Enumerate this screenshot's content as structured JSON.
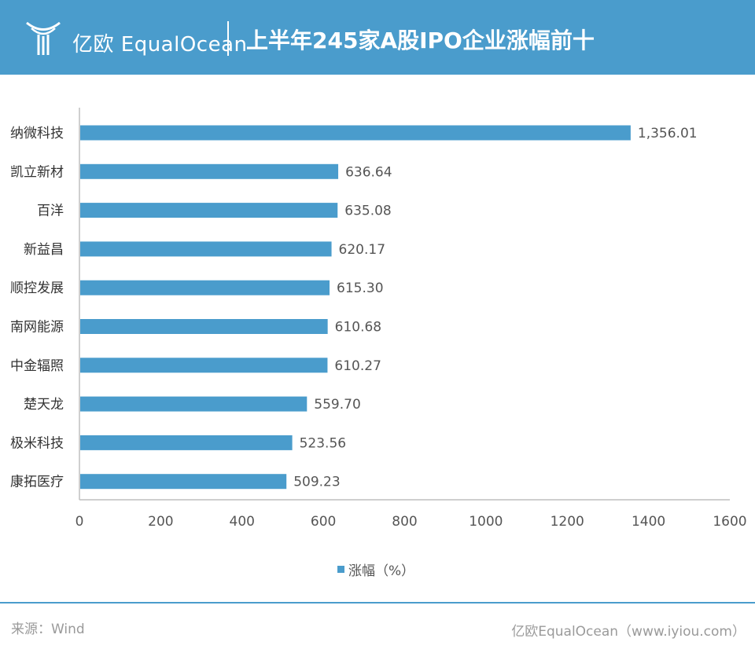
{
  "header": {
    "brand": "亿欧 EqualOcean",
    "title": "上半年245家A股IPO企业涨幅前十",
    "logo_icon": "equalocean-logo-icon",
    "background_color": "#4a9ccc"
  },
  "chart_data": {
    "type": "bar",
    "orientation": "horizontal",
    "title": "上半年245家A股IPO企业涨幅前十",
    "xlabel": "",
    "ylabel": "",
    "xlim": [
      0,
      1600
    ],
    "x_ticks": [
      "0",
      "200",
      "400",
      "600",
      "800",
      "1000",
      "1200",
      "1400",
      "1600"
    ],
    "grid": false,
    "legend_position": "bottom-center",
    "bar_color": "#4a9ccc",
    "categories": [
      "纳微科技",
      "凯立新材",
      "百洋",
      "新益昌",
      "顺控发展",
      "南网能源",
      "中金辐照",
      "楚天龙",
      "极米科技",
      "康拓医疗"
    ],
    "series": [
      {
        "name": "涨幅（%）",
        "values": [
          1356.01,
          636.64,
          635.08,
          620.17,
          615.3,
          610.68,
          610.27,
          559.7,
          523.56,
          509.23
        ],
        "labels": [
          "1,356.01",
          "636.64",
          "635.08",
          "620.17",
          "615.30",
          "610.68",
          "610.27",
          "559.70",
          "523.56",
          "509.23"
        ]
      }
    ]
  },
  "legend": {
    "label": "涨幅（%）"
  },
  "footer": {
    "source": "来源：Wind",
    "credit": "亿欧EqualOcean（www.iyiou.com）"
  }
}
